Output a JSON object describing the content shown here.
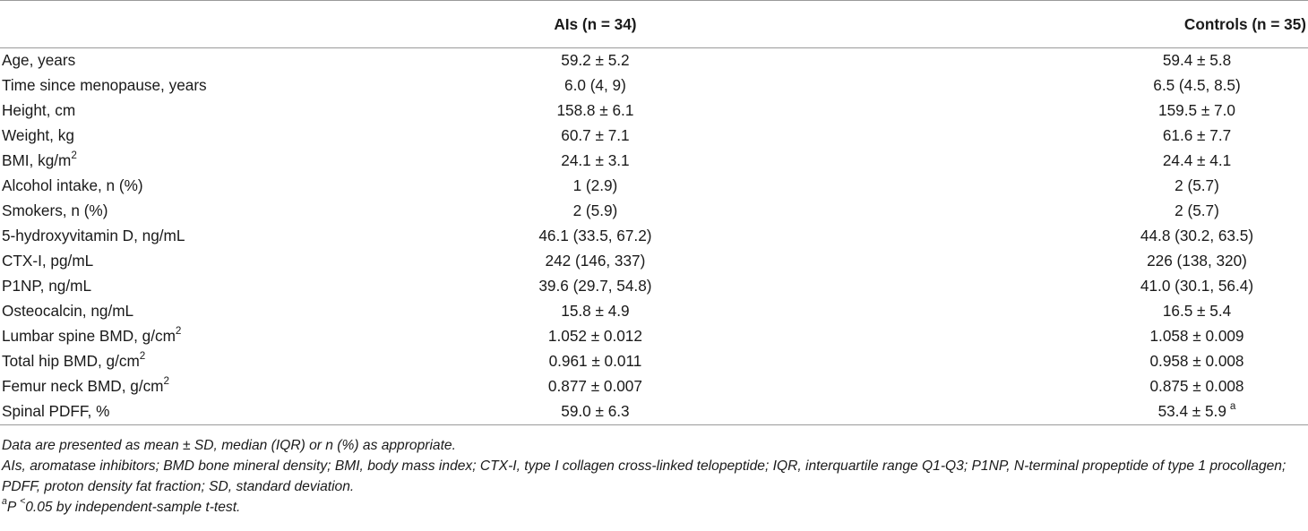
{
  "table": {
    "headers": [
      "",
      "AIs (n = 34)",
      "Controls (n = 35)"
    ],
    "rows": [
      {
        "label": "Age, years",
        "label_sup": "",
        "ais": "59.2 ± 5.2",
        "controls": "59.4 ± 5.8",
        "controls_sup": ""
      },
      {
        "label": "Time since menopause, years",
        "label_sup": "",
        "ais": "6.0 (4, 9)",
        "controls": "6.5 (4.5, 8.5)",
        "controls_sup": ""
      },
      {
        "label": "Height, cm",
        "label_sup": "",
        "ais": "158.8 ± 6.1",
        "controls": "159.5 ± 7.0",
        "controls_sup": ""
      },
      {
        "label": "Weight, kg",
        "label_sup": "",
        "ais": "60.7 ± 7.1",
        "controls": "61.6 ± 7.7",
        "controls_sup": ""
      },
      {
        "label": "BMI, kg/m",
        "label_sup": "2",
        "ais": "24.1 ± 3.1",
        "controls": "24.4 ± 4.1",
        "controls_sup": ""
      },
      {
        "label": "Alcohol intake, n (%)",
        "label_sup": "",
        "ais": "1 (2.9)",
        "controls": "2 (5.7)",
        "controls_sup": ""
      },
      {
        "label": "Smokers, n (%)",
        "label_sup": "",
        "ais": "2 (5.9)",
        "controls": "2 (5.7)",
        "controls_sup": ""
      },
      {
        "label": "5-hydroxyvitamin D, ng/mL",
        "label_sup": "",
        "ais": "46.1 (33.5, 67.2)",
        "controls": "44.8 (30.2, 63.5)",
        "controls_sup": ""
      },
      {
        "label": "CTX-I, pg/mL",
        "label_sup": "",
        "ais": "242 (146, 337)",
        "controls": "226 (138, 320)",
        "controls_sup": ""
      },
      {
        "label": "P1NP, ng/mL",
        "label_sup": "",
        "ais": "39.6 (29.7, 54.8)",
        "controls": "41.0 (30.1, 56.4)",
        "controls_sup": ""
      },
      {
        "label": "Osteocalcin, ng/mL",
        "label_sup": "",
        "ais": "15.8 ± 4.9",
        "controls": "16.5 ± 5.4",
        "controls_sup": ""
      },
      {
        "label": "Lumbar spine BMD, g/cm",
        "label_sup": "2",
        "ais": "1.052 ± 0.012",
        "controls": "1.058 ± 0.009",
        "controls_sup": ""
      },
      {
        "label": "Total hip BMD, g/cm",
        "label_sup": "2",
        "ais": "0.961 ± 0.011",
        "controls": "0.958 ± 0.008",
        "controls_sup": ""
      },
      {
        "label": "Femur neck BMD, g/cm",
        "label_sup": "2",
        "ais": "0.877 ± 0.007",
        "controls": "0.875 ± 0.008",
        "controls_sup": ""
      },
      {
        "label": "Spinal PDFF, %",
        "label_sup": "",
        "ais": "59.0 ± 6.3",
        "controls": "53.4 ± 5.9",
        "controls_sup": "a"
      }
    ]
  },
  "footnotes": {
    "line1": "Data are presented as mean ± SD, median (IQR) or n (%) as appropriate.",
    "line2": "AIs, aromatase inhibitors; BMD bone mineral density; BMI, body mass index; CTX-I, type I collagen cross-linked telopeptide; IQR, interquartile range Q1-Q3; P1NP, N-terminal propeptide of type 1 procollagen; PDFF, proton density fat fraction; SD, standard deviation.",
    "line3_sup": "a",
    "line3": "P ",
    "line3_sup2": "<",
    "line3_rest": "0.05 by independent-sample t-test."
  }
}
